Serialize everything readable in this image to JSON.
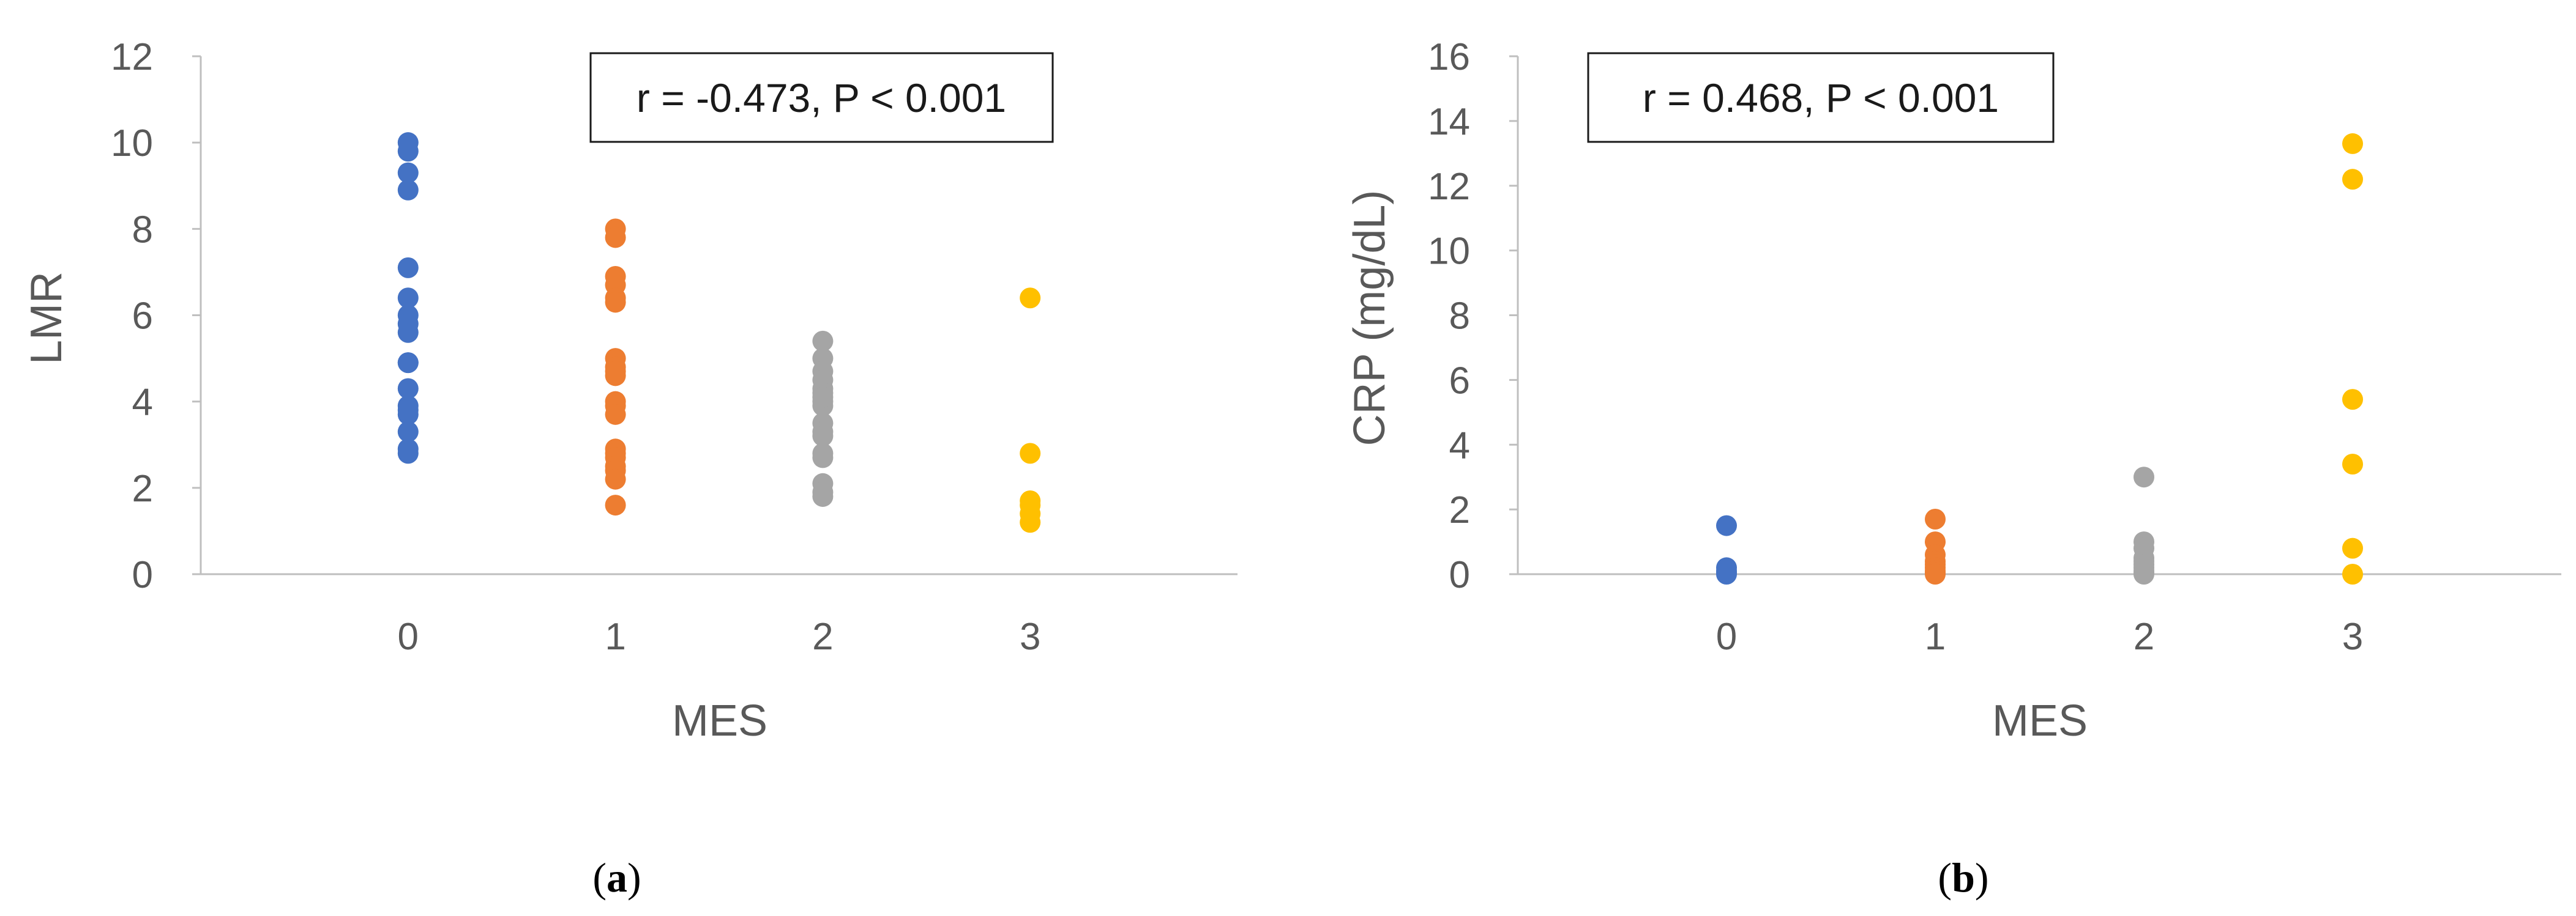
{
  "chart_data": [
    {
      "type": "scatter",
      "panel_label": "a",
      "annotation": "r = -0.473, P < 0.001",
      "xlabel": "MES",
      "ylabel": "LMR",
      "x_ticks": [
        "0",
        "1",
        "2",
        "3"
      ],
      "y_ticks": [
        "0",
        "2",
        "4",
        "6",
        "8",
        "10",
        "12"
      ],
      "xlim": [
        -1,
        4
      ],
      "ylim": [
        0,
        12
      ],
      "grid": false,
      "series": [
        {
          "color": "#4472C4",
          "x": [
            0,
            0,
            0,
            0,
            0,
            0,
            0,
            0,
            0,
            0,
            0,
            0,
            0,
            0,
            0,
            0,
            0,
            0
          ],
          "y": [
            10.0,
            9.8,
            9.3,
            8.9,
            7.1,
            6.4,
            6.0,
            5.8,
            5.6,
            4.9,
            4.9,
            4.3,
            3.9,
            3.8,
            3.7,
            3.3,
            2.9,
            2.8
          ]
        },
        {
          "color": "#ED7D31",
          "x": [
            1,
            1,
            1,
            1,
            1,
            1,
            1,
            1,
            1,
            1,
            1,
            1,
            1,
            1,
            1,
            1,
            1,
            1,
            1,
            1
          ],
          "y": [
            8.0,
            7.8,
            6.9,
            6.7,
            6.4,
            6.3,
            5.0,
            4.8,
            4.6,
            4.0,
            3.9,
            3.7,
            2.9,
            2.8,
            2.7,
            2.5,
            2.4,
            2.2,
            1.6,
            4.7
          ]
        },
        {
          "color": "#A5A5A5",
          "x": [
            2,
            2,
            2,
            2,
            2,
            2,
            2,
            2,
            2,
            2,
            2,
            2,
            2,
            2,
            2,
            2,
            2
          ],
          "y": [
            5.4,
            5.0,
            4.7,
            4.5,
            4.3,
            4.2,
            4.0,
            3.9,
            3.5,
            3.3,
            3.2,
            2.8,
            2.7,
            2.1,
            1.9,
            1.8,
            4.1
          ]
        },
        {
          "color": "#FFC000",
          "x": [
            3,
            3,
            3,
            3,
            3,
            3
          ],
          "y": [
            6.4,
            2.8,
            1.7,
            1.6,
            1.4,
            1.2
          ]
        }
      ]
    },
    {
      "type": "scatter",
      "panel_label": "b",
      "annotation": "r = 0.468, P < 0.001",
      "xlabel": "MES",
      "ylabel": "CRP (mg/dL)",
      "x_ticks": [
        "0",
        "1",
        "2",
        "3"
      ],
      "y_ticks": [
        "0",
        "2",
        "4",
        "6",
        "8",
        "10",
        "12",
        "14",
        "16"
      ],
      "xlim": [
        -1,
        4
      ],
      "ylim": [
        0,
        16
      ],
      "grid": false,
      "series": [
        {
          "color": "#4472C4",
          "x": [
            0,
            0,
            0,
            0,
            0
          ],
          "y": [
            1.5,
            0.2,
            0.1,
            0.05,
            0.0
          ]
        },
        {
          "color": "#ED7D31",
          "x": [
            1,
            1,
            1,
            1,
            1,
            1,
            1,
            1,
            1
          ],
          "y": [
            1.7,
            1.0,
            0.6,
            0.4,
            0.3,
            0.2,
            0.1,
            0.05,
            0.0
          ]
        },
        {
          "color": "#A5A5A5",
          "x": [
            2,
            2,
            2,
            2,
            2,
            2,
            2,
            2,
            2,
            2
          ],
          "y": [
            3.0,
            1.0,
            0.8,
            0.5,
            0.4,
            0.3,
            0.2,
            0.1,
            0.05,
            0.0
          ]
        },
        {
          "color": "#FFC000",
          "x": [
            3,
            3,
            3,
            3,
            3,
            3
          ],
          "y": [
            13.3,
            12.2,
            5.4,
            3.4,
            0.8,
            0.0
          ]
        }
      ]
    }
  ]
}
